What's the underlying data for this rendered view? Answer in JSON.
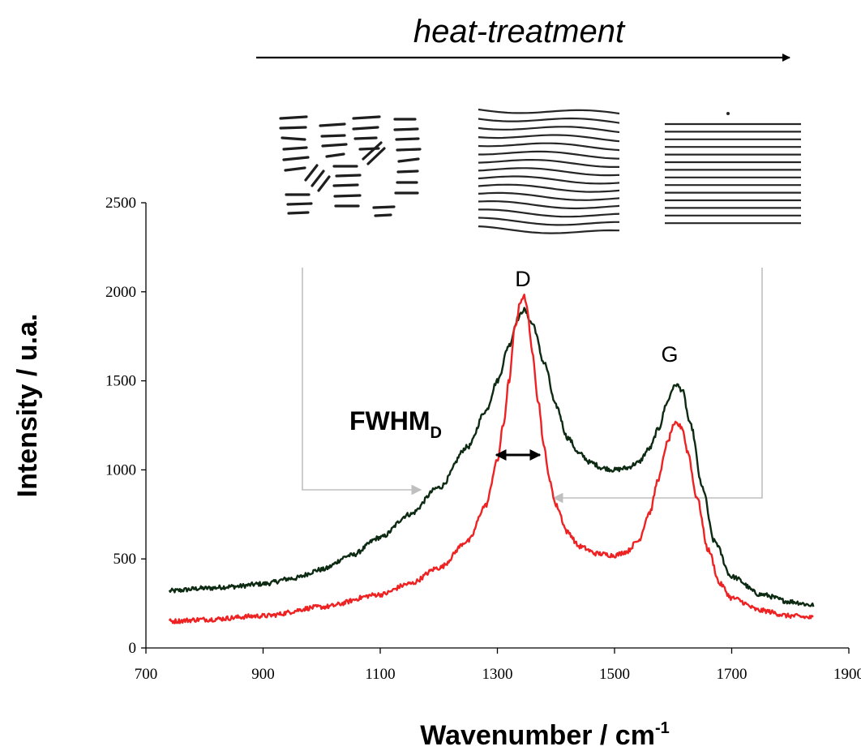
{
  "chart_data": {
    "type": "line",
    "title": "",
    "xlabel": "Wavenumber  / cm",
    "xlabel_superscript": "-1",
    "ylabel": "Intensity  /  u.a.",
    "xlim": [
      700,
      1900
    ],
    "ylim": [
      0,
      2500
    ],
    "x_ticks": [
      700,
      900,
      1100,
      1300,
      1500,
      1700,
      1900
    ],
    "y_ticks": [
      0,
      500,
      1000,
      1500,
      2000,
      2500
    ],
    "grid": false,
    "legend": "none",
    "series": [
      {
        "color": "#0d2a12",
        "x": [
          740,
          800,
          850,
          900,
          950,
          1000,
          1050,
          1100,
          1150,
          1200,
          1250,
          1280,
          1300,
          1320,
          1335,
          1345,
          1360,
          1380,
          1400,
          1420,
          1440,
          1460,
          1480,
          1500,
          1520,
          1540,
          1560,
          1575,
          1590,
          1600,
          1605,
          1615,
          1630,
          1650,
          1670,
          1700,
          1750,
          1800,
          1840
        ],
        "y": [
          320,
          335,
          345,
          360,
          390,
          440,
          520,
          620,
          750,
          900,
          1130,
          1330,
          1500,
          1700,
          1850,
          1900,
          1820,
          1600,
          1360,
          1180,
          1090,
          1040,
          1010,
          1000,
          1010,
          1040,
          1120,
          1230,
          1380,
          1460,
          1480,
          1450,
          1250,
          900,
          600,
          400,
          300,
          260,
          240
        ]
      },
      {
        "color": "#ee2222",
        "x": [
          740,
          800,
          900,
          1000,
          1100,
          1150,
          1200,
          1250,
          1280,
          1300,
          1310,
          1320,
          1330,
          1340,
          1345,
          1350,
          1360,
          1370,
          1380,
          1390,
          1400,
          1420,
          1440,
          1470,
          1500,
          1520,
          1540,
          1560,
          1575,
          1590,
          1600,
          1605,
          1615,
          1625,
          1640,
          1660,
          1680,
          1700,
          1750,
          1800,
          1840
        ],
        "y": [
          150,
          160,
          180,
          230,
          300,
          360,
          450,
          600,
          800,
          1050,
          1250,
          1500,
          1800,
          1950,
          1980,
          1920,
          1650,
          1380,
          1120,
          930,
          800,
          650,
          570,
          530,
          520,
          540,
          600,
          760,
          950,
          1150,
          1240,
          1260,
          1240,
          1100,
          850,
          550,
          360,
          280,
          210,
          180,
          170
        ]
      }
    ],
    "annotations": {
      "peak_D": "D",
      "peak_G": "G",
      "fwhm_main": "FWHM",
      "fwhm_sub": "D",
      "heat_treatment": "heat-treatment"
    }
  }
}
